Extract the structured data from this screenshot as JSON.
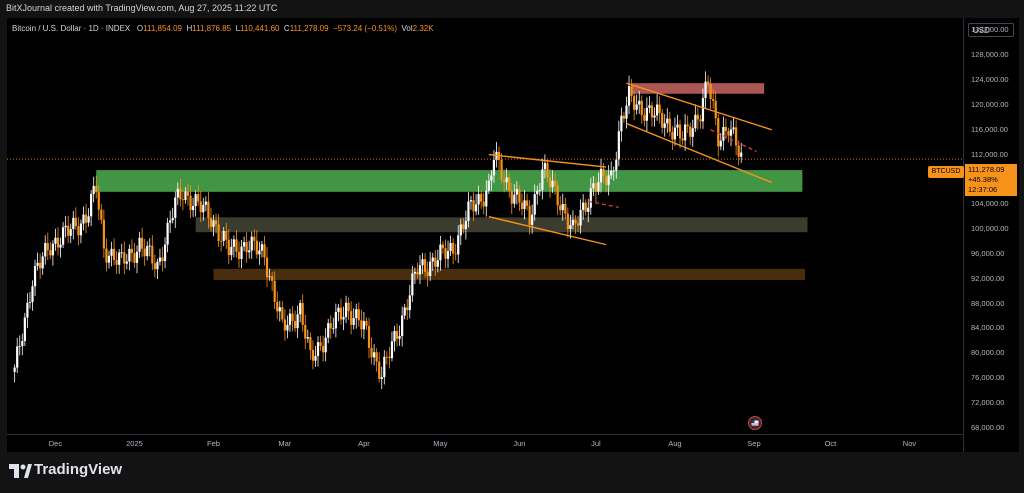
{
  "header": {
    "title": "BitXJournal created with TradingView.com, Aug 27, 2025 11:22 UTC"
  },
  "legend": {
    "symbol": "Bitcoin / U.S. Dollar · 1D · INDEX",
    "o_label": "O",
    "o": "111,854.09",
    "h_label": "H",
    "h": "111,876.85",
    "l_label": "L",
    "l": "110,441.60",
    "c_label": "C",
    "c": "111,278.09",
    "change": "−573.24 (−0.51%)",
    "vol_label": "Vol",
    "vol": "2.32K"
  },
  "currency": "USD",
  "last_price_tag": {
    "symbol": "BTCUSD",
    "price": "111,278.09",
    "change": "+45.38%",
    "countdown": "12:37:06"
  },
  "footer": {
    "brand": "TradingView"
  },
  "colors": {
    "candle_up": "#ffffff",
    "candle_down": "#f7931a",
    "support_zone": "#4caf50",
    "resistance_zone": "#e57373",
    "neutral_zone": "#4a4a3a",
    "lower_zone": "#5a3a10",
    "channel": "#f7931a",
    "projection": "#e53935"
  },
  "chart_data": {
    "type": "candlestick",
    "x_ticks": [
      "Dec",
      "2025",
      "Feb",
      "Mar",
      "Apr",
      "May",
      "Jun",
      "Jul",
      "Aug",
      "Sep",
      "Oct",
      "Nov"
    ],
    "y_ticks": [
      "132,000.00",
      "128,000.00",
      "124,000.00",
      "120,000.00",
      "116,000.00",
      "112,000.00",
      "108,000.00",
      "104,000.00",
      "100,000.00",
      "96,000.00",
      "92,000.00",
      "88,000.00",
      "84,000.00",
      "80,000.00",
      "76,000.00",
      "72,000.00",
      "68,000.00"
    ],
    "ylim": [
      67000,
      134000
    ],
    "series_close": [
      [
        "2024-11-15",
        77000
      ],
      [
        "2024-11-22",
        92000
      ],
      [
        "2024-11-29",
        97500
      ],
      [
        "2024-12-06",
        99500
      ],
      [
        "2024-12-13",
        102000
      ],
      [
        "2024-12-17",
        106500
      ],
      [
        "2024-12-20",
        97000
      ],
      [
        "2024-12-27",
        94500
      ],
      [
        "2025-01-03",
        97500
      ],
      [
        "2025-01-10",
        94000
      ],
      [
        "2025-01-17",
        104000
      ],
      [
        "2025-01-20",
        106000
      ],
      [
        "2025-01-24",
        104500
      ],
      [
        "2025-01-31",
        102000
      ],
      [
        "2025-02-07",
        96500
      ],
      [
        "2025-02-14",
        97500
      ],
      [
        "2025-02-21",
        96000
      ],
      [
        "2025-02-28",
        84000
      ],
      [
        "2025-03-07",
        87000
      ],
      [
        "2025-03-11",
        79000
      ],
      [
        "2025-03-18",
        83500
      ],
      [
        "2025-03-25",
        87500
      ],
      [
        "2025-04-01",
        84000
      ],
      [
        "2025-04-08",
        76500
      ],
      [
        "2025-04-15",
        84500
      ],
      [
        "2025-04-22",
        93500
      ],
      [
        "2025-04-29",
        95000
      ],
      [
        "2025-05-06",
        97000
      ],
      [
        "2025-05-13",
        103500
      ],
      [
        "2025-05-20",
        106500
      ],
      [
        "2025-05-22",
        111500
      ],
      [
        "2025-05-29",
        106000
      ],
      [
        "2025-06-05",
        102000
      ],
      [
        "2025-06-10",
        109500
      ],
      [
        "2025-06-17",
        104500
      ],
      [
        "2025-06-22",
        99500
      ],
      [
        "2025-06-30",
        107000
      ],
      [
        "2025-07-07",
        108500
      ],
      [
        "2025-07-11",
        117500
      ],
      [
        "2025-07-14",
        121000
      ],
      [
        "2025-07-21",
        119000
      ],
      [
        "2025-07-28",
        117500
      ],
      [
        "2025-08-04",
        114500
      ],
      [
        "2025-08-11",
        119000
      ],
      [
        "2025-08-14",
        123500
      ],
      [
        "2025-08-18",
        115000
      ],
      [
        "2025-08-22",
        116500
      ],
      [
        "2025-08-27",
        111278
      ]
    ],
    "zones": [
      {
        "kind": "resistance",
        "from": "2025-07-15",
        "to": "2025-09-05",
        "y": [
          121800,
          123500
        ]
      },
      {
        "kind": "support",
        "from": "2024-12-17",
        "to": "2025-09-20",
        "y": [
          106000,
          109500
        ]
      },
      {
        "kind": "neutral",
        "from": "2025-01-25",
        "to": "2025-09-22",
        "y": [
          99500,
          101900
        ]
      },
      {
        "kind": "lower",
        "from": "2025-02-01",
        "to": "2025-09-21",
        "y": [
          91800,
          93600
        ]
      }
    ],
    "channels": [
      {
        "from": "2025-05-20",
        "to": "2025-07-05",
        "upper": [
          112000,
          110000
        ],
        "lower": [
          102000,
          97500
        ]
      },
      {
        "from": "2025-07-13",
        "to": "2025-09-08",
        "upper": [
          123500,
          116000
        ],
        "lower": [
          117000,
          107500
        ]
      }
    ],
    "projections": [
      {
        "from": "2025-06-28",
        "to": "2025-07-10",
        "y": [
          104500,
          103500
        ]
      },
      {
        "from": "2025-08-15",
        "to": "2025-09-02",
        "y": [
          116000,
          112500
        ]
      }
    ],
    "last_close": 111278.09
  }
}
